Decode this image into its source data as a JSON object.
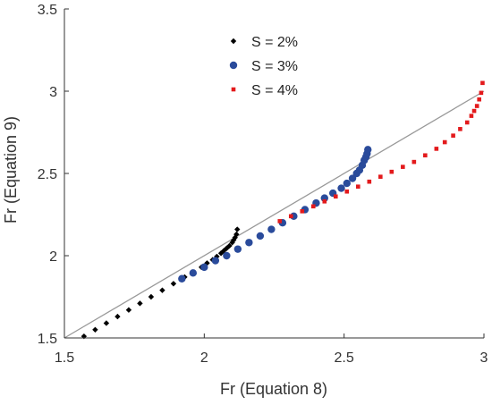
{
  "chart_data": {
    "type": "scatter",
    "xlabel": "Fr (Equation 8)",
    "ylabel": "Fr (Equation 9)",
    "xlim": [
      1.5,
      3
    ],
    "ylim": [
      1.5,
      3.5
    ],
    "x_ticks": [
      "1.5",
      "2",
      "2.5",
      "3"
    ],
    "y_ticks": [
      "1.5",
      "2",
      "2.5",
      "3",
      "3.5"
    ],
    "grid": false,
    "legend_position": "top-center",
    "reference_line": {
      "from": [
        1.5,
        1.5
      ],
      "to": [
        3,
        3
      ],
      "color": "#999999"
    },
    "series": [
      {
        "name": "S = 2%",
        "marker": "diamond",
        "color": "#000000",
        "x": [
          1.57,
          1.61,
          1.65,
          1.69,
          1.73,
          1.77,
          1.81,
          1.85,
          1.89,
          1.93,
          1.96,
          1.99,
          2.01,
          2.03,
          2.045,
          2.06,
          2.07,
          2.08,
          2.09,
          2.1,
          2.105,
          2.11,
          2.115,
          2.118
        ],
        "y": [
          1.51,
          1.55,
          1.59,
          1.63,
          1.67,
          1.71,
          1.75,
          1.79,
          1.83,
          1.87,
          1.9,
          1.93,
          1.955,
          1.975,
          1.995,
          2.015,
          2.03,
          2.045,
          2.06,
          2.08,
          2.095,
          2.11,
          2.13,
          2.16
        ]
      },
      {
        "name": "S = 3%",
        "marker": "circle",
        "color": "#2a4b9b",
        "x": [
          1.92,
          1.96,
          2.0,
          2.04,
          2.08,
          2.12,
          2.16,
          2.2,
          2.24,
          2.28,
          2.32,
          2.36,
          2.4,
          2.43,
          2.46,
          2.49,
          2.51,
          2.53,
          2.545,
          2.555,
          2.565,
          2.572,
          2.578,
          2.582,
          2.585
        ],
        "y": [
          1.86,
          1.895,
          1.93,
          1.97,
          2.0,
          2.04,
          2.08,
          2.12,
          2.16,
          2.2,
          2.24,
          2.28,
          2.32,
          2.35,
          2.38,
          2.41,
          2.44,
          2.47,
          2.5,
          2.52,
          2.55,
          2.58,
          2.6,
          2.62,
          2.645
        ]
      },
      {
        "name": "S = 4%",
        "marker": "square",
        "color": "#e31a1c",
        "x": [
          2.27,
          2.31,
          2.35,
          2.39,
          2.43,
          2.47,
          2.51,
          2.55,
          2.59,
          2.63,
          2.67,
          2.71,
          2.75,
          2.79,
          2.83,
          2.86,
          2.89,
          2.915,
          2.94,
          2.955,
          2.965,
          2.975,
          2.983,
          2.99,
          2.995
        ],
        "y": [
          2.21,
          2.24,
          2.27,
          2.3,
          2.33,
          2.36,
          2.39,
          2.42,
          2.45,
          2.48,
          2.51,
          2.54,
          2.57,
          2.61,
          2.65,
          2.69,
          2.73,
          2.77,
          2.81,
          2.85,
          2.88,
          2.91,
          2.95,
          2.99,
          3.05
        ]
      }
    ]
  }
}
